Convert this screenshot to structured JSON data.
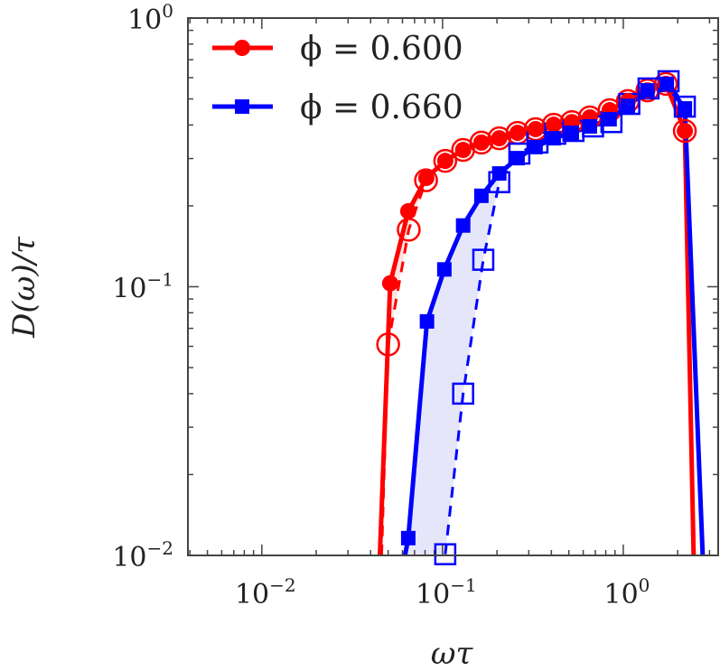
{
  "chart_data": {
    "type": "line",
    "title": "",
    "xlabel": "ωτ",
    "ylabel": "D(ω)/τ",
    "xscale": "log",
    "yscale": "log",
    "xlim": [
      0.0039,
      3.35
    ],
    "ylim": [
      0.01,
      1
    ],
    "x_ticks": [
      {
        "value": 0.01,
        "label": "10",
        "exp": "−2"
      },
      {
        "value": 0.1,
        "label": "10",
        "exp": "−1"
      },
      {
        "value": 1,
        "label": "10",
        "exp": "0"
      }
    ],
    "y_ticks": [
      {
        "value": 0.01,
        "label": "10",
        "exp": "−2"
      },
      {
        "value": 0.1,
        "label": "10",
        "exp": "−1"
      },
      {
        "value": 1,
        "label": "10",
        "exp": "0"
      }
    ],
    "grid": false,
    "legend_position": "top-left",
    "series": [
      {
        "name": "ϕ = 0.600",
        "legend_label": "ϕ = 0.600",
        "color": "#ff0000",
        "marker": "filled-circle",
        "line": "solid",
        "x": [
          0.045,
          0.0513,
          0.0646,
          0.0813,
          0.1035,
          0.13,
          0.164,
          0.206,
          0.26,
          0.327,
          0.412,
          0.519,
          0.653,
          0.84,
          1.06,
          1.36,
          1.72,
          2.19,
          2.45
        ],
        "y": [
          0.01,
          0.103,
          0.191,
          0.254,
          0.294,
          0.323,
          0.344,
          0.357,
          0.374,
          0.386,
          0.401,
          0.41,
          0.427,
          0.454,
          0.491,
          0.538,
          0.569,
          0.38,
          0.01
        ]
      },
      {
        "name": "",
        "color": "#ff0000",
        "marker": "open-circle",
        "line": "dashed",
        "x": [
          0.046,
          0.05,
          0.065,
          0.081,
          0.1035,
          0.13,
          0.164,
          0.206,
          0.26,
          0.327,
          0.412,
          0.519,
          0.653,
          0.84,
          1.06,
          1.36,
          1.72,
          2.19
        ],
        "y": [
          0.01,
          0.061,
          0.163,
          0.249,
          0.294,
          0.323,
          0.344,
          0.357,
          0.374,
          0.386,
          0.401,
          0.41,
          0.427,
          0.454,
          0.491,
          0.538,
          0.569,
          0.38
        ]
      },
      {
        "name": "ϕ = 0.660",
        "legend_label": "ϕ = 0.660",
        "color": "#0000ff",
        "marker": "filled-square",
        "line": "solid",
        "x": [
          0.062,
          0.0646,
          0.082,
          0.1023,
          0.13,
          0.164,
          0.206,
          0.26,
          0.327,
          0.412,
          0.519,
          0.653,
          0.84,
          1.06,
          1.36,
          1.74,
          2.19,
          2.75
        ],
        "y": [
          0.01,
          0.0116,
          0.0743,
          0.116,
          0.169,
          0.218,
          0.264,
          0.301,
          0.331,
          0.357,
          0.374,
          0.395,
          0.42,
          0.471,
          0.538,
          0.569,
          0.461,
          0.01
        ]
      },
      {
        "name": "",
        "color": "#0000ff",
        "marker": "open-square",
        "line": "dashed",
        "x": [
          0.1035,
          0.13,
          0.168,
          0.206,
          0.266,
          0.335,
          0.42,
          0.53,
          0.68,
          0.86,
          1.08,
          1.38,
          1.78,
          2.19
        ],
        "y": [
          0.0101,
          0.04,
          0.126,
          0.245,
          0.313,
          0.344,
          0.371,
          0.38,
          0.395,
          0.41,
          0.479,
          0.547,
          0.582,
          0.468
        ]
      }
    ],
    "shaded_bands": [
      {
        "between": [
          2,
          3
        ],
        "color": "#e3e3fb"
      },
      {
        "between": [
          0,
          1
        ],
        "color": "#ffe0e0"
      }
    ]
  }
}
